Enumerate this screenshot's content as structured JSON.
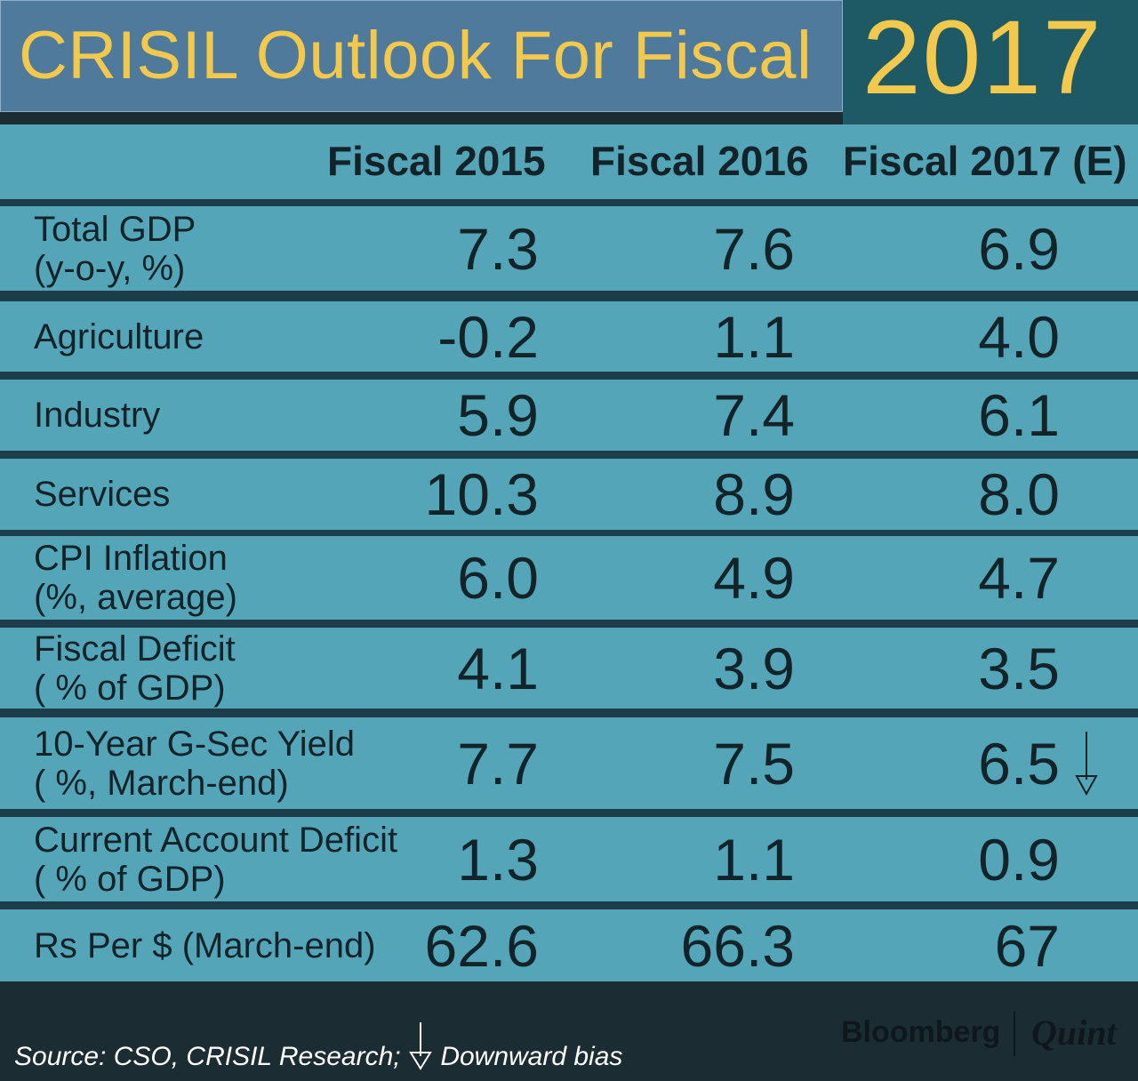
{
  "title": {
    "main": "CRISIL Outlook For Fiscal",
    "year": "2017"
  },
  "chart_data": {
    "type": "table",
    "columns": [
      "Fiscal 2015",
      "Fiscal 2016",
      "Fiscal 2017 (E)"
    ],
    "rows": [
      {
        "label": [
          "Total GDP",
          "(y-o-y, %)"
        ],
        "values": [
          "7.3",
          "7.6",
          "6.9"
        ]
      },
      {
        "label": [
          "Agriculture"
        ],
        "values": [
          "-0.2",
          "1.1",
          "4.0"
        ]
      },
      {
        "label": [
          "Industry"
        ],
        "values": [
          "5.9",
          "7.4",
          "6.1"
        ]
      },
      {
        "label": [
          "Services"
        ],
        "values": [
          "10.3",
          "8.9",
          "8.0"
        ]
      },
      {
        "label": [
          "CPI Inflation",
          " (%, average)"
        ],
        "values": [
          "6.0",
          "4.9",
          "4.7"
        ]
      },
      {
        "label": [
          "Fiscal Deficit",
          "( % of GDP)"
        ],
        "values": [
          "4.1",
          "3.9",
          "3.5"
        ]
      },
      {
        "label": [
          "10-Year G-Sec Yield",
          "( %, March-end)"
        ],
        "values": [
          "7.7",
          "7.5",
          "6.5"
        ],
        "downward_bias_column": 2
      },
      {
        "label": [
          "Current Account Deficit",
          "( % of GDP)"
        ],
        "values": [
          "1.3",
          "1.1",
          "0.9"
        ]
      },
      {
        "label": [
          "Rs Per $ (March-end)"
        ],
        "values": [
          "62.6",
          "66.3",
          "67"
        ]
      }
    ]
  },
  "footer": {
    "source": "Source: CSO, CRISIL Research;",
    "legend": "Downward bias",
    "brand_left": "Bloomberg",
    "brand_right": "Quint"
  },
  "colors": {
    "title_bg": "#4f7a9c",
    "year_bg": "#1d5a66",
    "title_text": "#f2c94c",
    "row_bg": "#53a5b7",
    "separator": "#1d3d4a",
    "footer_bg": "#1c2c33"
  },
  "icons": {
    "downward_bias": "down-arrow-icon"
  }
}
